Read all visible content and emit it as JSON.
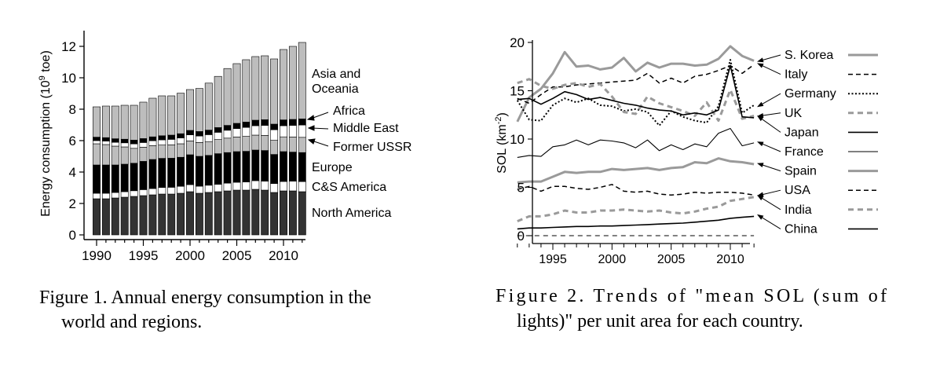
{
  "figure1": {
    "caption_line1": "Figure 1. Annual energy consumption in the",
    "caption_line2": "world and regions.",
    "colors": {
      "North America": "#333333",
      "C&S America": "#ffffff",
      "Europe": "#000000",
      "Former USSR": "#bdbdbd",
      "Middle East": "#ffffff",
      "Africa": "#000000",
      "Asia and Oceania": "#bdbdbd"
    },
    "labels": {
      "asia_line1": "Asia and",
      "asia_line2": "Oceania",
      "africa": "Africa",
      "middle_east": "Middle East",
      "former_ussr": "Former USSR",
      "europe": "Europe",
      "cs_america": "C&S America",
      "north_america": "North America"
    },
    "chart_data": {
      "type": "bar",
      "stacked": true,
      "ylabel_main": "Energy consumption (10",
      "ylabel_sup": "9",
      "ylabel_tail": " toe)",
      "ylim": [
        0,
        13
      ],
      "yticks": [
        0,
        2,
        4,
        6,
        8,
        10,
        12
      ],
      "xticks": [
        1990,
        1995,
        2000,
        2005,
        2010
      ],
      "categories": [
        1990,
        1991,
        1992,
        1993,
        1994,
        1995,
        1996,
        1997,
        1998,
        1999,
        2000,
        2001,
        2002,
        2003,
        2004,
        2005,
        2006,
        2007,
        2008,
        2009,
        2010,
        2011,
        2012
      ],
      "series": [
        {
          "name": "North America",
          "values": [
            2.3,
            2.3,
            2.35,
            2.4,
            2.45,
            2.5,
            2.55,
            2.6,
            2.6,
            2.65,
            2.75,
            2.65,
            2.7,
            2.75,
            2.8,
            2.85,
            2.85,
            2.9,
            2.85,
            2.7,
            2.8,
            2.8,
            2.75
          ]
        },
        {
          "name": "C&S America",
          "values": [
            0.35,
            0.35,
            0.35,
            0.35,
            0.36,
            0.38,
            0.4,
            0.42,
            0.43,
            0.44,
            0.45,
            0.45,
            0.46,
            0.47,
            0.49,
            0.5,
            0.52,
            0.55,
            0.57,
            0.57,
            0.6,
            0.62,
            0.64
          ]
        },
        {
          "name": "Europe",
          "values": [
            1.8,
            1.8,
            1.75,
            1.75,
            1.75,
            1.8,
            1.85,
            1.85,
            1.85,
            1.85,
            1.9,
            1.9,
            1.9,
            1.95,
            1.95,
            1.95,
            1.95,
            1.95,
            1.95,
            1.85,
            1.9,
            1.85,
            1.85
          ]
        },
        {
          "name": "Former USSR",
          "values": [
            1.35,
            1.3,
            1.2,
            1.1,
            0.95,
            0.9,
            0.88,
            0.85,
            0.85,
            0.86,
            0.88,
            0.88,
            0.88,
            0.9,
            0.92,
            0.93,
            0.95,
            0.95,
            0.96,
            0.9,
            0.94,
            0.96,
            0.97
          ]
        },
        {
          "name": "Middle East",
          "values": [
            0.2,
            0.22,
            0.24,
            0.26,
            0.28,
            0.3,
            0.31,
            0.33,
            0.35,
            0.37,
            0.39,
            0.41,
            0.44,
            0.46,
            0.5,
            0.54,
            0.57,
            0.6,
            0.64,
            0.67,
            0.71,
            0.74,
            0.78
          ]
        },
        {
          "name": "Africa",
          "values": [
            0.22,
            0.22,
            0.23,
            0.23,
            0.24,
            0.25,
            0.25,
            0.26,
            0.27,
            0.27,
            0.28,
            0.29,
            0.29,
            0.3,
            0.31,
            0.33,
            0.34,
            0.35,
            0.36,
            0.36,
            0.37,
            0.38,
            0.39
          ]
        },
        {
          "name": "Asia and Oceania",
          "values": [
            1.93,
            2.01,
            2.08,
            2.16,
            2.22,
            2.32,
            2.46,
            2.54,
            2.5,
            2.58,
            2.6,
            2.74,
            2.99,
            3.26,
            3.62,
            3.8,
            3.97,
            4.05,
            4.07,
            4.15,
            4.48,
            4.65,
            4.87
          ]
        }
      ]
    }
  },
  "figure2": {
    "caption_line1": "Figure  2.  Trends  of  \"mean  SOL  (sum  of",
    "caption_line2": "lights)\" per unit area for each country.",
    "chart_data": {
      "type": "line",
      "ylabel_main": "SOL (km",
      "ylabel_sup": "-2",
      "ylabel_tail": ")",
      "ylim": [
        0,
        20
      ],
      "yticks": [
        0,
        5,
        10,
        15,
        20
      ],
      "xticks": [
        1995,
        2000,
        2005,
        2010
      ],
      "x": [
        1992,
        1993,
        1994,
        1995,
        1996,
        1997,
        1998,
        1999,
        2000,
        2001,
        2002,
        2003,
        2004,
        2005,
        2006,
        2007,
        2008,
        2009,
        2010,
        2011,
        2012
      ],
      "series": [
        {
          "name": "S. Korea",
          "style": "grey-solid",
          "values": [
            11.8,
            14.3,
            15.2,
            16.8,
            19.0,
            17.5,
            17.6,
            17.2,
            17.4,
            18.4,
            17.0,
            17.9,
            17.4,
            17.8,
            17.8,
            17.6,
            17.7,
            18.3,
            19.6,
            18.6,
            18.1
          ]
        },
        {
          "name": "Italy",
          "style": "black-dash",
          "values": [
            14.2,
            13.7,
            14.6,
            15.4,
            15.4,
            15.6,
            15.7,
            15.8,
            15.9,
            16.0,
            16.1,
            16.8,
            15.8,
            16.3,
            15.8,
            16.5,
            16.7,
            17.1,
            17.6,
            16.8,
            17.7
          ]
        },
        {
          "name": "Germany",
          "style": "black-dot",
          "values": [
            14.0,
            12.0,
            11.9,
            13.5,
            14.2,
            13.8,
            14.2,
            13.5,
            13.4,
            12.9,
            13.1,
            12.8,
            11.4,
            12.9,
            12.3,
            11.9,
            11.7,
            13.4,
            18.2,
            12.7,
            13.5
          ]
        },
        {
          "name": "UK",
          "style": "grey-dash",
          "values": [
            15.8,
            16.2,
            15.5,
            15.2,
            15.6,
            15.8,
            15.4,
            15.7,
            14.4,
            12.8,
            12.6,
            14.4,
            13.7,
            13.3,
            12.9,
            12.4,
            13.8,
            11.9,
            15.1,
            12.1,
            12.4
          ]
        },
        {
          "name": "Japan",
          "style": "black-solid",
          "values": [
            14.1,
            14.2,
            13.6,
            14.2,
            14.9,
            14.6,
            14.1,
            14.3,
            14.0,
            13.7,
            13.5,
            13.2,
            13.0,
            12.9,
            12.5,
            12.7,
            12.5,
            13.0,
            17.6,
            12.3,
            12.2
          ]
        },
        {
          "name": "France",
          "style": "black-thin",
          "values": [
            8.1,
            8.3,
            8.2,
            9.2,
            9.4,
            9.9,
            9.4,
            9.9,
            9.8,
            9.6,
            9.1,
            9.9,
            8.8,
            9.4,
            8.9,
            9.5,
            9.2,
            10.6,
            11.1,
            9.3,
            9.6
          ]
        },
        {
          "name": "Spain",
          "style": "grey-solid",
          "values": [
            5.5,
            5.6,
            5.6,
            6.1,
            6.6,
            6.5,
            6.6,
            6.6,
            6.9,
            6.8,
            6.9,
            7.0,
            6.8,
            7.0,
            7.1,
            7.6,
            7.5,
            8.0,
            7.7,
            7.6,
            7.4
          ]
        },
        {
          "name": "USA",
          "style": "black-dash",
          "values": [
            4.8,
            5.1,
            4.6,
            5.1,
            5.1,
            4.9,
            4.8,
            5.0,
            5.3,
            4.6,
            4.5,
            4.6,
            4.3,
            4.2,
            4.3,
            4.5,
            4.4,
            4.5,
            4.5,
            4.4,
            4.2
          ]
        },
        {
          "name": "India",
          "style": "grey-dash",
          "values": [
            1.5,
            2.0,
            2.0,
            2.2,
            2.6,
            2.4,
            2.4,
            2.6,
            2.6,
            2.7,
            2.6,
            2.5,
            2.6,
            2.4,
            2.3,
            2.5,
            2.8,
            3.0,
            3.6,
            3.8,
            4.0
          ]
        },
        {
          "name": "China",
          "style": "black-solid",
          "values": [
            0.7,
            0.8,
            0.8,
            0.85,
            0.9,
            0.95,
            0.95,
            1.0,
            1.0,
            1.05,
            1.1,
            1.15,
            1.2,
            1.25,
            1.3,
            1.4,
            1.5,
            1.6,
            1.8,
            1.9,
            2.0
          ]
        },
        {
          "name": "",
          "style": "black-dash-thin",
          "values": [
            0,
            0,
            0,
            0,
            0,
            0,
            0,
            0,
            0,
            0,
            0,
            0,
            0,
            0,
            0,
            0,
            0,
            0,
            0,
            0,
            0
          ]
        }
      ],
      "legend": [
        "S. Korea",
        "Italy",
        "Germany",
        "UK",
        "Japan",
        "France",
        "Spain",
        "USA",
        "India",
        "China"
      ]
    }
  }
}
